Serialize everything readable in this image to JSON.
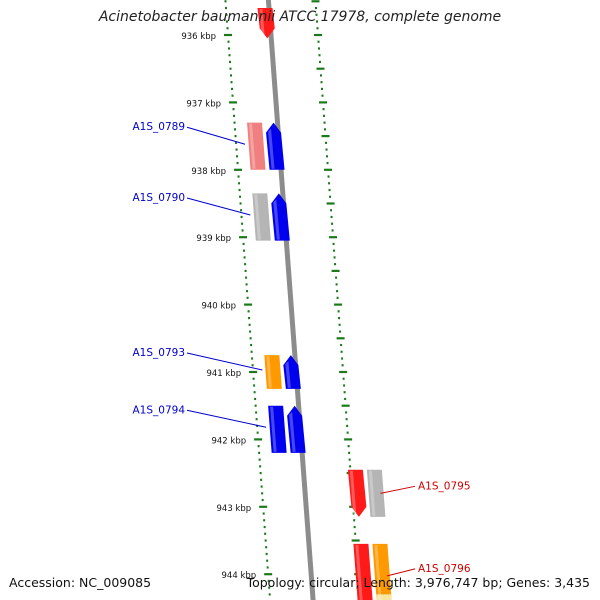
{
  "title": "Acinetobacter baumannii ATCC 17978, complete genome",
  "footer": {
    "accession_label": "Accession:",
    "accession": "NC_009085",
    "topology_label": "Topology:",
    "topology": "circular",
    "length_label": "Length:",
    "length": "3,976,747 bp",
    "genes_label": "Genes:",
    "genes": "3,435"
  },
  "ruler": {
    "unit": "kbp",
    "ticks": [
      "936 kbp",
      "937 kbp",
      "938 kbp",
      "939 kbp",
      "940 kbp",
      "941 kbp",
      "942 kbp",
      "943 kbp",
      "944 kbp"
    ]
  },
  "colors": {
    "backbone": "#8c8c8c",
    "ticks": "#1a7a1a",
    "label_blue": "#0000cc",
    "label_red": "#cc0000",
    "gene_red": "#ff1a1a",
    "gene_pink": "#f08080",
    "gene_gray": "#b5b5b5",
    "gene_blue": "#0000ee",
    "gene_orange": "#ff9900",
    "gene_yellow": "#f5e6a0"
  },
  "genes": [
    {
      "kbp_start": 935.6,
      "kbp_end": 936.05,
      "strand": "reverse",
      "lane": "inner-right",
      "color": "gene_red",
      "label": ""
    },
    {
      "kbp_start": 937.3,
      "kbp_end": 938.0,
      "strand": "none",
      "lane": "inner-left",
      "color": "gene_pink",
      "label": "A1S_0789",
      "label_color": "label_blue"
    },
    {
      "kbp_start": 937.3,
      "kbp_end": 938.0,
      "strand": "forward",
      "lane": "inner-right",
      "color": "gene_blue",
      "label": ""
    },
    {
      "kbp_start": 938.35,
      "kbp_end": 939.05,
      "strand": "none",
      "lane": "inner-left",
      "color": "gene_gray",
      "label": "A1S_0790",
      "label_color": "label_blue"
    },
    {
      "kbp_start": 938.35,
      "kbp_end": 939.05,
      "strand": "forward",
      "lane": "inner-right",
      "color": "gene_blue",
      "label": ""
    },
    {
      "kbp_start": 940.75,
      "kbp_end": 941.25,
      "strand": "none",
      "lane": "inner-left",
      "color": "gene_orange",
      "label": "A1S_0793",
      "label_color": "label_blue"
    },
    {
      "kbp_start": 940.75,
      "kbp_end": 941.25,
      "strand": "forward",
      "lane": "inner-right",
      "color": "gene_blue",
      "label": ""
    },
    {
      "kbp_start": 941.5,
      "kbp_end": 942.2,
      "strand": "none",
      "lane": "inner-left",
      "color": "gene_blue",
      "label": "A1S_0794",
      "label_color": "label_blue"
    },
    {
      "kbp_start": 941.5,
      "kbp_end": 942.2,
      "strand": "forward",
      "lane": "inner-right",
      "color": "gene_blue",
      "label": ""
    },
    {
      "kbp_start": 942.45,
      "kbp_end": 943.15,
      "strand": "reverse",
      "lane": "outer-left",
      "color": "gene_red",
      "label": "A1S_0795",
      "label_color": "label_red"
    },
    {
      "kbp_start": 942.45,
      "kbp_end": 943.15,
      "strand": "none",
      "lane": "outer-right",
      "color": "gene_gray",
      "label": ""
    },
    {
      "kbp_start": 943.55,
      "kbp_end": 944.5,
      "strand": "none",
      "lane": "outer-left",
      "color": "gene_red",
      "label": "A1S_0796",
      "label_color": "label_red"
    },
    {
      "kbp_start": 943.55,
      "kbp_end": 944.5,
      "strand": "none",
      "lane": "outer-right",
      "color": "gene_orange",
      "label": ""
    },
    {
      "kbp_start": 944.3,
      "kbp_end": 944.6,
      "strand": "none",
      "lane": "outer-right",
      "color": "gene_yellow",
      "label": ""
    }
  ]
}
